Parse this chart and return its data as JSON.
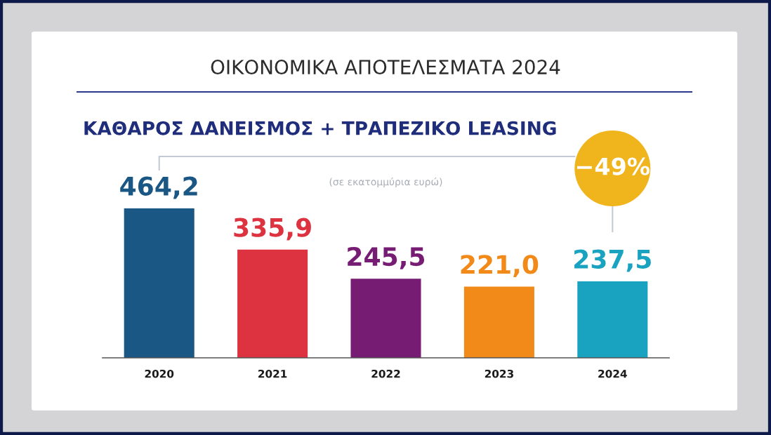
{
  "chart_data": {
    "type": "bar",
    "title": "ΟΙΚΟΝΟΜΙΚΑ ΑΠΟΤΕΛΕΣΜΑΤΑ 2024",
    "subtitle": "ΚΑΘΑΡΟΣ ΔΑΝΕΙΣΜΟΣ + ΤΡΑΠΕΖΙΚΟ LEASING",
    "annotations": [
      "(σε εκατομμύρια ευρώ)",
      "−49%"
    ],
    "categories": [
      "2020",
      "2021",
      "2022",
      "2023",
      "2024"
    ],
    "values": [
      464.2,
      335.9,
      245.5,
      221.0,
      237.5
    ],
    "colors": [
      "#1b5784",
      "#dd3340",
      "#761c73",
      "#f28a1a",
      "#1aa3c0"
    ],
    "value_labels": [
      "464,2",
      "335,9",
      "245,5",
      "221,0",
      "237,5"
    ],
    "tick_labels": "x"
  }
}
